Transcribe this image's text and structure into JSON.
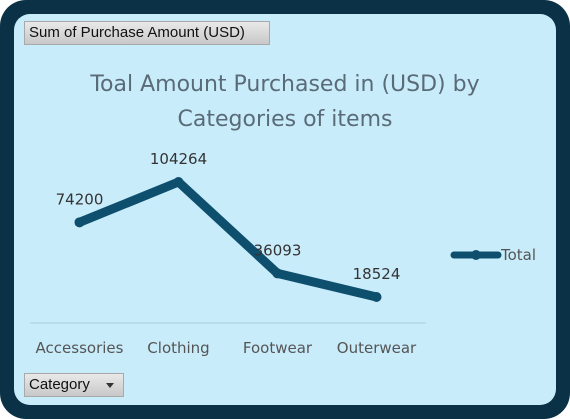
{
  "value_field_label": "Sum of Purchase Amount (USD)",
  "category_field_label": "Category",
  "chart_data": {
    "type": "line",
    "title": "Toal Amount Purchased in (USD) by Categories of items",
    "title_lines": [
      "Toal Amount Purchased in (USD) by",
      "Categories of items"
    ],
    "categories": [
      "Accessories",
      "Clothing",
      "Footwear",
      "Outerwear"
    ],
    "series": [
      {
        "name": "Total",
        "values": [
          74200,
          104264,
          36093,
          18524
        ],
        "color": "#0e4f6e"
      }
    ],
    "data_labels": [
      "74200",
      "104264",
      "36093",
      "18524"
    ],
    "legend_position": "right",
    "grid": false,
    "xlabel": "",
    "ylabel": ""
  }
}
